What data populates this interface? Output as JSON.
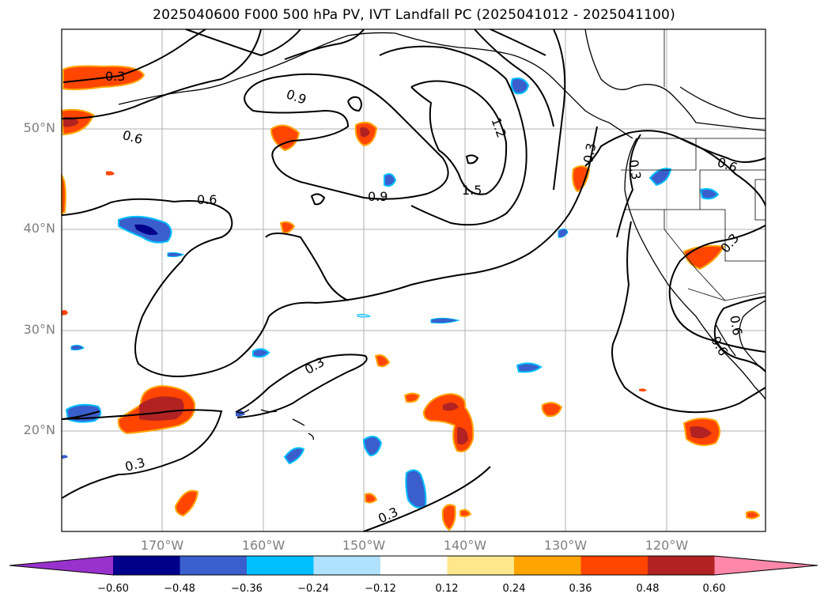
{
  "title": "2025040600 F000 500 hPa PV, IVT Landfall PC (2025041012 - 2025041100)",
  "lat_labels": [
    "50°N",
    "40°N",
    "30°N",
    "20°N"
  ],
  "lon_labels": [
    "170°W",
    "160°W",
    "150°W",
    "140°W",
    "130°W",
    "120°W"
  ],
  "colorbar": {
    "ticks": [
      "−0.60",
      "−0.48",
      "−0.36",
      "−0.24",
      "−0.12",
      "0.12",
      "0.24",
      "0.36",
      "0.48",
      "0.60"
    ],
    "colors": [
      "#9932cc",
      "#00008b",
      "#3a5fcd",
      "#00bfff",
      "#b0e2ff",
      "#ffffff",
      "#ffe88c",
      "#ffa500",
      "#ff4500",
      "#b22222",
      "#ff88aa"
    ]
  },
  "contour_labels": [
    "0.3",
    "0.9",
    "1.2",
    "0.6",
    "0.6",
    "0.9",
    "1.5",
    "0.3",
    "0.3",
    "0.6",
    "0.3",
    "0.3",
    "0.3",
    "0.3",
    "0.6",
    "0.6"
  ]
}
